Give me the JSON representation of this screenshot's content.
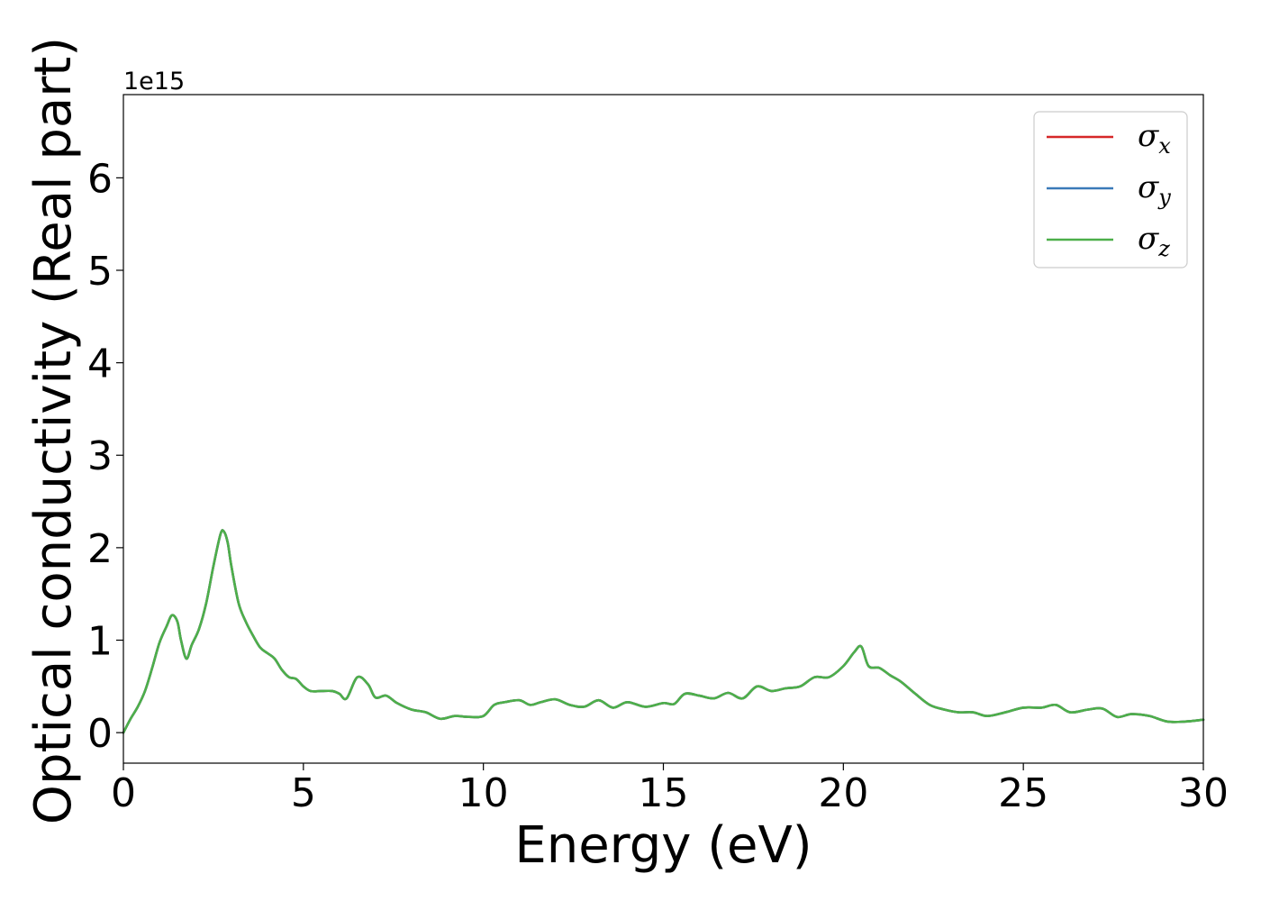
{
  "chart_data": {
    "type": "line",
    "xlabel": "Energy (eV)",
    "ylabel": "Optical conductivity (Real part)",
    "y_offset_label": "1e15",
    "y_scale_exponent": 15,
    "xlim": [
      0,
      30
    ],
    "ylim": [
      -0.33,
      6.9
    ],
    "x_ticks": [
      0,
      5,
      10,
      15,
      20,
      25,
      30
    ],
    "y_ticks": [
      0,
      1,
      2,
      3,
      4,
      5,
      6
    ],
    "grid": false,
    "legend_position": "top-right",
    "series": [
      {
        "name": "σx",
        "symbol": "σ",
        "subscript": "x",
        "color": "#d62728",
        "x": [
          0,
          0.2,
          0.4,
          0.6,
          0.8,
          1.0,
          1.2,
          1.35,
          1.5,
          1.6,
          1.75,
          1.9,
          2.1,
          2.3,
          2.5,
          2.7,
          2.8,
          2.9,
          3.0,
          3.2,
          3.4,
          3.6,
          3.8,
          4.0,
          4.2,
          4.4,
          4.6,
          4.8,
          5.0,
          5.2,
          5.5,
          5.8,
          6.0,
          6.2,
          6.5,
          6.8,
          7.0,
          7.3,
          7.6,
          8.0,
          8.4,
          8.8,
          9.2,
          9.6,
          10.0,
          10.3,
          10.6,
          11.0,
          11.3,
          11.6,
          12.0,
          12.4,
          12.8,
          13.2,
          13.6,
          14.0,
          14.5,
          15.0,
          15.3,
          15.6,
          16.0,
          16.4,
          16.8,
          17.2,
          17.6,
          18.0,
          18.4,
          18.8,
          19.2,
          19.6,
          20.0,
          20.3,
          20.5,
          20.7,
          21.0,
          21.3,
          21.6,
          22.0,
          22.4,
          22.8,
          23.2,
          23.6,
          24.0,
          24.5,
          25.0,
          25.5,
          25.9,
          26.3,
          26.8,
          27.2,
          27.6,
          28.0,
          28.5,
          29.0,
          29.5,
          30.0
        ],
        "y": [
          0.0,
          0.15,
          0.28,
          0.45,
          0.7,
          0.97,
          1.15,
          1.27,
          1.2,
          1.0,
          0.8,
          0.95,
          1.12,
          1.4,
          1.8,
          2.15,
          2.17,
          2.05,
          1.8,
          1.4,
          1.2,
          1.05,
          0.92,
          0.86,
          0.8,
          0.68,
          0.6,
          0.58,
          0.5,
          0.45,
          0.45,
          0.45,
          0.42,
          0.37,
          0.6,
          0.52,
          0.38,
          0.4,
          0.32,
          0.25,
          0.22,
          0.15,
          0.18,
          0.17,
          0.18,
          0.3,
          0.33,
          0.35,
          0.3,
          0.33,
          0.36,
          0.3,
          0.28,
          0.35,
          0.27,
          0.33,
          0.28,
          0.32,
          0.31,
          0.42,
          0.4,
          0.37,
          0.43,
          0.37,
          0.5,
          0.45,
          0.48,
          0.5,
          0.6,
          0.6,
          0.72,
          0.87,
          0.93,
          0.72,
          0.7,
          0.62,
          0.55,
          0.42,
          0.3,
          0.25,
          0.22,
          0.22,
          0.18,
          0.22,
          0.27,
          0.27,
          0.3,
          0.22,
          0.25,
          0.26,
          0.17,
          0.2,
          0.18,
          0.12,
          0.12,
          0.14
        ]
      },
      {
        "name": "σy",
        "symbol": "σ",
        "subscript": "y",
        "color": "#3a7ab8",
        "x": [
          0,
          0.2,
          0.4,
          0.6,
          0.8,
          1.0,
          1.2,
          1.35,
          1.5,
          1.6,
          1.75,
          1.9,
          2.1,
          2.3,
          2.5,
          2.7,
          2.8,
          2.9,
          3.0,
          3.2,
          3.4,
          3.6,
          3.8,
          4.0,
          4.2,
          4.4,
          4.6,
          4.8,
          5.0,
          5.2,
          5.5,
          5.8,
          6.0,
          6.2,
          6.5,
          6.8,
          7.0,
          7.3,
          7.6,
          8.0,
          8.4,
          8.8,
          9.2,
          9.6,
          10.0,
          10.3,
          10.6,
          11.0,
          11.3,
          11.6,
          12.0,
          12.4,
          12.8,
          13.2,
          13.6,
          14.0,
          14.5,
          15.0,
          15.3,
          15.6,
          16.0,
          16.4,
          16.8,
          17.2,
          17.6,
          18.0,
          18.4,
          18.8,
          19.2,
          19.6,
          20.0,
          20.3,
          20.5,
          20.7,
          21.0,
          21.3,
          21.6,
          22.0,
          22.4,
          22.8,
          23.2,
          23.6,
          24.0,
          24.5,
          25.0,
          25.5,
          25.9,
          26.3,
          26.8,
          27.2,
          27.6,
          28.0,
          28.5,
          29.0,
          29.5,
          30.0
        ],
        "y": [
          0.0,
          0.15,
          0.28,
          0.45,
          0.7,
          0.97,
          1.15,
          1.27,
          1.2,
          1.0,
          0.8,
          0.95,
          1.12,
          1.4,
          1.8,
          2.15,
          2.17,
          2.05,
          1.8,
          1.4,
          1.2,
          1.05,
          0.92,
          0.86,
          0.8,
          0.68,
          0.6,
          0.58,
          0.5,
          0.45,
          0.45,
          0.45,
          0.42,
          0.37,
          0.6,
          0.52,
          0.38,
          0.4,
          0.32,
          0.25,
          0.22,
          0.15,
          0.18,
          0.17,
          0.18,
          0.3,
          0.33,
          0.35,
          0.3,
          0.33,
          0.36,
          0.3,
          0.28,
          0.35,
          0.27,
          0.33,
          0.28,
          0.32,
          0.31,
          0.42,
          0.4,
          0.37,
          0.43,
          0.37,
          0.5,
          0.45,
          0.48,
          0.5,
          0.6,
          0.6,
          0.72,
          0.87,
          0.93,
          0.72,
          0.7,
          0.62,
          0.55,
          0.42,
          0.3,
          0.25,
          0.22,
          0.22,
          0.18,
          0.22,
          0.27,
          0.27,
          0.3,
          0.22,
          0.25,
          0.26,
          0.17,
          0.2,
          0.18,
          0.12,
          0.12,
          0.14
        ]
      },
      {
        "name": "σz",
        "symbol": "σ",
        "subscript": "z",
        "color": "#4daf4a",
        "x": [
          0,
          0.2,
          0.4,
          0.6,
          0.8,
          1.0,
          1.2,
          1.35,
          1.5,
          1.6,
          1.75,
          1.9,
          2.1,
          2.3,
          2.5,
          2.7,
          2.8,
          2.9,
          3.0,
          3.2,
          3.4,
          3.6,
          3.8,
          4.0,
          4.2,
          4.4,
          4.6,
          4.8,
          5.0,
          5.2,
          5.5,
          5.8,
          6.0,
          6.2,
          6.5,
          6.8,
          7.0,
          7.3,
          7.6,
          8.0,
          8.4,
          8.8,
          9.2,
          9.6,
          10.0,
          10.3,
          10.6,
          11.0,
          11.3,
          11.6,
          12.0,
          12.4,
          12.8,
          13.2,
          13.6,
          14.0,
          14.5,
          15.0,
          15.3,
          15.6,
          16.0,
          16.4,
          16.8,
          17.2,
          17.6,
          18.0,
          18.4,
          18.8,
          19.2,
          19.6,
          20.0,
          20.3,
          20.5,
          20.7,
          21.0,
          21.3,
          21.6,
          22.0,
          22.4,
          22.8,
          23.2,
          23.6,
          24.0,
          24.5,
          25.0,
          25.5,
          25.9,
          26.3,
          26.8,
          27.2,
          27.6,
          28.0,
          28.5,
          29.0,
          29.5,
          30.0
        ],
        "y": [
          0.0,
          0.15,
          0.28,
          0.45,
          0.7,
          0.97,
          1.15,
          1.27,
          1.2,
          1.0,
          0.8,
          0.95,
          1.12,
          1.4,
          1.8,
          2.15,
          2.17,
          2.05,
          1.8,
          1.4,
          1.2,
          1.05,
          0.92,
          0.86,
          0.8,
          0.68,
          0.6,
          0.58,
          0.5,
          0.45,
          0.45,
          0.45,
          0.42,
          0.37,
          0.6,
          0.52,
          0.38,
          0.4,
          0.32,
          0.25,
          0.22,
          0.15,
          0.18,
          0.17,
          0.18,
          0.3,
          0.33,
          0.35,
          0.3,
          0.33,
          0.36,
          0.3,
          0.28,
          0.35,
          0.27,
          0.33,
          0.28,
          0.32,
          0.31,
          0.42,
          0.4,
          0.37,
          0.43,
          0.37,
          0.5,
          0.45,
          0.48,
          0.5,
          0.6,
          0.6,
          0.72,
          0.87,
          0.93,
          0.72,
          0.7,
          0.62,
          0.55,
          0.42,
          0.3,
          0.25,
          0.22,
          0.22,
          0.18,
          0.22,
          0.27,
          0.27,
          0.3,
          0.22,
          0.25,
          0.26,
          0.17,
          0.2,
          0.18,
          0.12,
          0.12,
          0.14
        ]
      }
    ]
  }
}
